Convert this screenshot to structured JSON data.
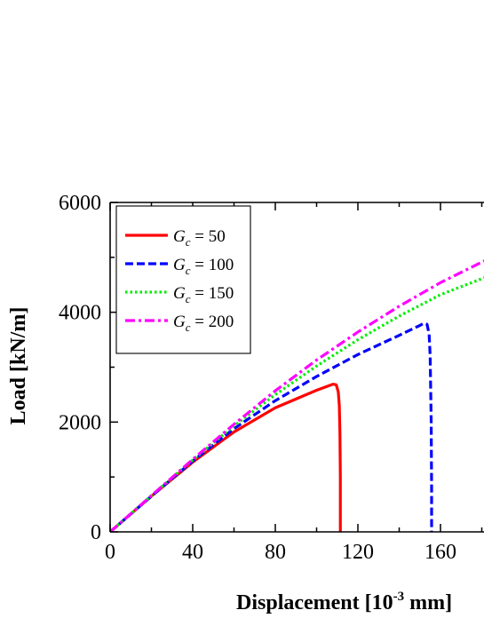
{
  "chart_data": {
    "type": "line",
    "xlabel_main": "Displacement  [10",
    "xlabel_exp": "-3",
    "xlabel_unit": " mm]",
    "ylabel": "Load [kN/m]",
    "xlim": [
      0,
      182
    ],
    "ylim": [
      0,
      6000
    ],
    "x_ticks": [
      "0",
      "40",
      "80",
      "120",
      "160"
    ],
    "y_ticks": [
      "0",
      "2000",
      "4000",
      "6000"
    ],
    "legend_position": "top-left",
    "grid": false,
    "series": [
      {
        "name_var": "G",
        "name_sub": "c",
        "name_value": " = 50",
        "color": "#ff0000",
        "dash": "solid",
        "x": [
          0,
          20,
          40,
          60,
          80,
          100,
          108,
          109.5,
          110.5,
          111,
          111.3,
          111.5,
          111.5
        ],
        "y": [
          0,
          650,
          1270,
          1820,
          2260,
          2580,
          2690,
          2680,
          2550,
          2300,
          1800,
          1000,
          0
        ]
      },
      {
        "name_var": "G",
        "name_sub": "c",
        "name_value": " = 100",
        "color": "#0000ff",
        "dash": "dashed",
        "x": [
          0,
          20,
          40,
          60,
          80,
          100,
          120,
          140,
          150,
          152,
          153.5,
          154.5,
          155,
          155.5,
          155.7,
          155.7
        ],
        "y": [
          0,
          650,
          1290,
          1880,
          2390,
          2830,
          3230,
          3580,
          3760,
          3800,
          3780,
          3600,
          3200,
          2000,
          800,
          0
        ]
      },
      {
        "name_var": "G",
        "name_sub": "c",
        "name_value": " = 150",
        "color": "#00ee00",
        "dash": "dotted",
        "x": [
          0,
          20,
          40,
          60,
          80,
          100,
          120,
          140,
          160,
          182
        ],
        "y": [
          0,
          660,
          1310,
          1930,
          2500,
          3020,
          3500,
          3930,
          4320,
          4640
        ]
      },
      {
        "name_var": "G",
        "name_sub": "c",
        "name_value": " = 200",
        "color": "#ff00ff",
        "dash": "dashdot",
        "x": [
          0,
          20,
          40,
          60,
          80,
          100,
          120,
          140,
          160,
          182
        ],
        "y": [
          0,
          660,
          1320,
          1960,
          2570,
          3130,
          3640,
          4110,
          4540,
          4950
        ]
      }
    ]
  }
}
